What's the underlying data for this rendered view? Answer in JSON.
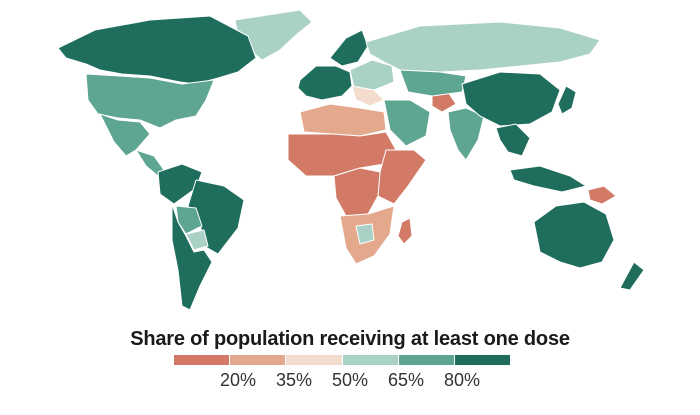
{
  "legend": {
    "title": "Share of population receiving at least one dose",
    "colors": [
      "#d27a66",
      "#e4a98c",
      "#f3dccd",
      "#a9d1c5",
      "#5ea592",
      "#1f6e5d"
    ],
    "ticks": [
      "20%",
      "35%",
      "50%",
      "65%",
      "80%"
    ]
  },
  "regions": [
    {
      "name": "Greenland",
      "color": "#a9d1c5"
    },
    {
      "name": "Canada",
      "color": "#1f6e5d"
    },
    {
      "name": "United States",
      "color": "#5ea592"
    },
    {
      "name": "Mexico",
      "color": "#5ea592"
    },
    {
      "name": "Central America",
      "color": "#5ea592"
    },
    {
      "name": "Northern South America",
      "color": "#1f6e5d"
    },
    {
      "name": "Brazil",
      "color": "#1f6e5d"
    },
    {
      "name": "Bolivia",
      "color": "#5ea592"
    },
    {
      "name": "Paraguay",
      "color": "#a9d1c5"
    },
    {
      "name": "Southern South America",
      "color": "#1f6e5d"
    },
    {
      "name": "Western Europe",
      "color": "#1f6e5d"
    },
    {
      "name": "Scandinavia",
      "color": "#1f6e5d"
    },
    {
      "name": "Eastern Europe",
      "color": "#a9d1c5"
    },
    {
      "name": "Russia",
      "color": "#a9d1c5"
    },
    {
      "name": "Balkans",
      "color": "#f3dccd"
    },
    {
      "name": "Middle East",
      "color": "#5ea592"
    },
    {
      "name": "Afghanistan",
      "color": "#d27a66"
    },
    {
      "name": "India",
      "color": "#5ea592"
    },
    {
      "name": "Central Asia",
      "color": "#5ea592"
    },
    {
      "name": "China",
      "color": "#1f6e5d"
    },
    {
      "name": "Japan",
      "color": "#1f6e5d"
    },
    {
      "name": "Southeast Asia",
      "color": "#1f6e5d"
    },
    {
      "name": "Indonesia",
      "color": "#1f6e5d"
    },
    {
      "name": "Papua New Guinea",
      "color": "#d27a66"
    },
    {
      "name": "Australia",
      "color": "#1f6e5d"
    },
    {
      "name": "New Zealand",
      "color": "#1f6e5d"
    },
    {
      "name": "North Africa",
      "color": "#e4a98c"
    },
    {
      "name": "Sahel and West Africa",
      "color": "#d27a66"
    },
    {
      "name": "Central Africa",
      "color": "#d27a66"
    },
    {
      "name": "East Africa",
      "color": "#d27a66"
    },
    {
      "name": "Southern Africa",
      "color": "#e4a98c"
    },
    {
      "name": "Botswana",
      "color": "#a9d1c5"
    },
    {
      "name": "Madagascar",
      "color": "#d27a66"
    }
  ]
}
